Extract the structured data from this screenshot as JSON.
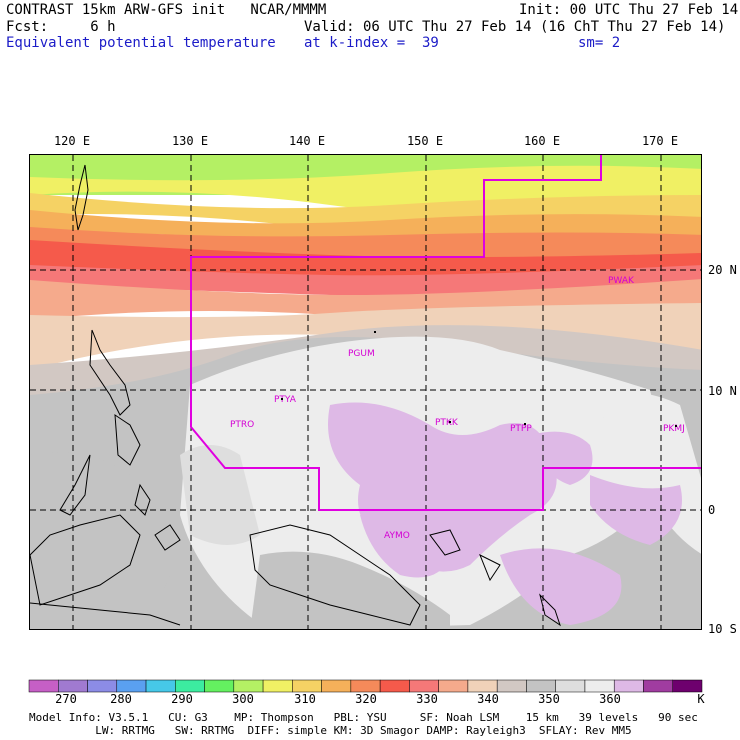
{
  "header": {
    "line1_left": "CONTRAST 15km ARW-GFS init   NCAR/MMMM",
    "line1_right": "Init: 00 UTC Thu 27 Feb 14",
    "line2_left": "Fcst:     6 h",
    "line2_right": "Valid: 06 UTC Thu 27 Feb 14 (16 ChT Thu 27 Feb 14)",
    "line3_left": "Equivalent potential temperature",
    "line3_mid": "at k-index =  39",
    "line3_right": "sm= 2"
  },
  "map": {
    "lon_labels": [
      "120 E",
      "130 E",
      "140 E",
      "150 E",
      "160 E",
      "170 E"
    ],
    "lat_labels": [
      "20 N",
      "10 N",
      "0",
      "10 S"
    ],
    "stations": [
      "PGUM",
      "PTYA",
      "PTRO",
      "PTKK",
      "PTPP",
      "PKMJ",
      "PWAK",
      "AYMO"
    ],
    "boundary_color": "#e000e0"
  },
  "colorbar": {
    "colors": [
      "#c65fc6",
      "#a07ad0",
      "#8c8ce6",
      "#5aa0f0",
      "#46c8e8",
      "#3ceca0",
      "#64f060",
      "#b4f064",
      "#f0f064",
      "#f5d264",
      "#f5b05a",
      "#f58a5a",
      "#f55a4b",
      "#f57878",
      "#f5aa8c",
      "#f0d2b9",
      "#d2c8c3",
      "#c3c3c3",
      "#dedede",
      "#ededed",
      "#deb9e6",
      "#a03ca0",
      "#6e006e"
    ],
    "labels": [
      "270",
      "280",
      "290",
      "300",
      "310",
      "320",
      "330",
      "340",
      "350",
      "360",
      "K"
    ]
  },
  "footer": {
    "line1": "Model Info: V3.5.1   CU: G3    MP: Thompson   PBL: YSU     SF: Noah LSM    15 km   39 levels   90 sec",
    "line2": "          LW: RRTMG   SW: RRTMG  DIFF: simple KM: 3D Smagor DAMP: Rayleigh3  SFLAY: Rev MM5"
  }
}
